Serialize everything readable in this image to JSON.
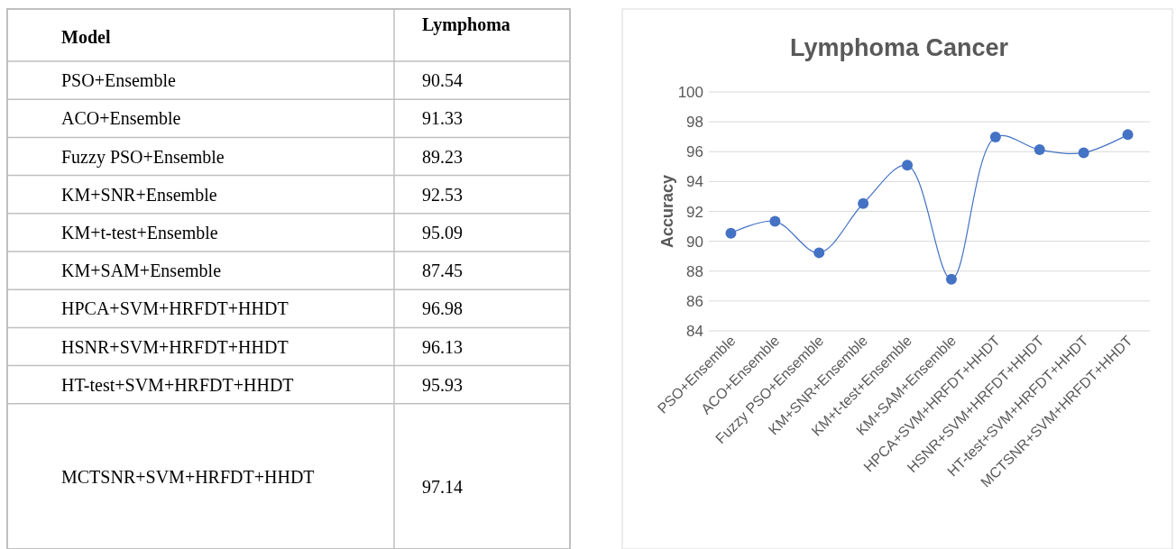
{
  "chart_data": [
    {
      "type": "other",
      "annotations": [
        "Model",
        "Lymphoma"
      ],
      "categories": [
        "PSO+Ensemble",
        "ACO+Ensemble",
        "Fuzzy PSO+Ensemble",
        "KM+SNR+Ensemble",
        "KM+t-test+Ensemble",
        "KM+SAM+Ensemble",
        "HPCA+SVM+HRFDT+HHDT",
        "HSNR+SVM+HRFDT+HHDT",
        "HT-test+SVM+HRFDT+HHDT",
        "MCTSNR+SVM+HRFDT+HHDT"
      ],
      "values": [
        90.54,
        91.33,
        89.23,
        92.53,
        95.09,
        87.45,
        96.98,
        96.13,
        95.93,
        97.14
      ],
      "data_labels": true
    },
    {
      "type": "line",
      "title": "Lymphoma Cancer",
      "ylabel": "Accuracy",
      "categories": [
        "PSO+Ensemble",
        "ACO+Ensemble",
        "Fuzzy PSO+Ensemble",
        "KM+SNR+Ensemble",
        "KM+t-test+Ensemble",
        "KM+SAM+Ensemble",
        "HPCA+SVM+HRFDT+HHDT",
        "HSNR+SVM+HRFDT+HHDT",
        "HT-test+SVM+HRFDT+HHDT",
        "MCTSNR+SVM+HRFDT+HHDT"
      ],
      "series": [
        {
          "color": "#4472c4",
          "values": [
            90.54,
            91.33,
            89.23,
            92.53,
            95.09,
            87.45,
            96.98,
            96.13,
            95.93,
            97.14
          ]
        }
      ],
      "ylim": [
        84,
        100
      ],
      "yticks": [
        84,
        86,
        88,
        90,
        92,
        94,
        96,
        98,
        100
      ],
      "grid": "y",
      "marker": "circle"
    }
  ]
}
